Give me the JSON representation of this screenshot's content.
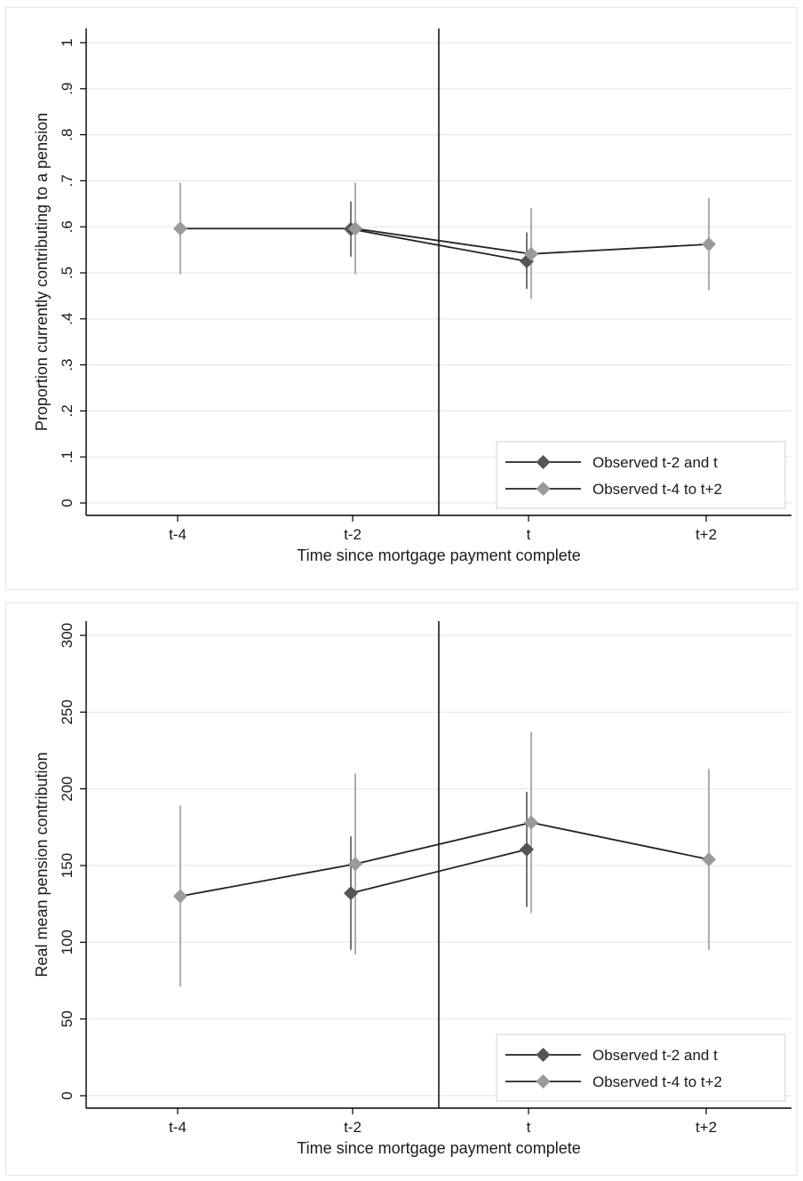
{
  "chart_data": [
    {
      "type": "line",
      "xlabel": "Time since mortgage payment complete",
      "ylabel": "Proportion currently contributing to a pension",
      "categories": [
        "t-4",
        "t-2",
        "t",
        "t+2"
      ],
      "ylim": [
        0,
        1
      ],
      "yticks": [
        0,
        0.1,
        0.2,
        0.3,
        0.4,
        0.5,
        0.6,
        0.7,
        0.8,
        0.9,
        1
      ],
      "ytick_labels": [
        "0",
        ".1",
        ".2",
        ".3",
        ".4",
        ".5",
        ".6",
        ".7",
        ".8",
        ".9",
        "1"
      ],
      "vline_between": [
        "t-2",
        "t"
      ],
      "grid": true,
      "legend_position": "bottom-right",
      "series": [
        {
          "name": "Observed t-2 and t",
          "color": "#555555",
          "points": [
            {
              "x": "t-2",
              "y": 0.595,
              "ci": [
                0.535,
                0.655
              ]
            },
            {
              "x": "t",
              "y": 0.525,
              "ci": [
                0.465,
                0.588
              ]
            }
          ]
        },
        {
          "name": "Observed t-4 to t+2",
          "color": "#9a9a9a",
          "points": [
            {
              "x": "t-4",
              "y": 0.596,
              "ci": [
                0.497,
                0.696
              ]
            },
            {
              "x": "t-2",
              "y": 0.596,
              "ci": [
                0.497,
                0.696
              ]
            },
            {
              "x": "t",
              "y": 0.541,
              "ci": [
                0.443,
                0.641
              ]
            },
            {
              "x": "t+2",
              "y": 0.562,
              "ci": [
                0.462,
                0.663
              ]
            }
          ]
        }
      ]
    },
    {
      "type": "line",
      "xlabel": "Time since mortgage payment complete",
      "ylabel": "Real mean pension contribution",
      "categories": [
        "t-4",
        "t-2",
        "t",
        "t+2"
      ],
      "ylim": [
        0,
        300
      ],
      "yticks": [
        0,
        50,
        100,
        150,
        200,
        250,
        300
      ],
      "ytick_labels": [
        "0",
        "50",
        "100",
        "150",
        "200",
        "250",
        "300"
      ],
      "vline_between": [
        "t-2",
        "t"
      ],
      "grid": true,
      "legend_position": "bottom-right",
      "series": [
        {
          "name": "Observed t-2 and t",
          "color": "#555555",
          "points": [
            {
              "x": "t-2",
              "y": 132,
              "ci": [
                95,
                169
              ]
            },
            {
              "x": "t",
              "y": 160.5,
              "ci": [
                123,
                198
              ]
            }
          ]
        },
        {
          "name": "Observed t-4 to t+2",
          "color": "#9a9a9a",
          "points": [
            {
              "x": "t-4",
              "y": 130,
              "ci": [
                71,
                189
              ]
            },
            {
              "x": "t-2",
              "y": 151,
              "ci": [
                92,
                210
              ]
            },
            {
              "x": "t",
              "y": 178,
              "ci": [
                119,
                237
              ]
            },
            {
              "x": "t+2",
              "y": 154,
              "ci": [
                95,
                213
              ]
            }
          ]
        }
      ]
    }
  ]
}
